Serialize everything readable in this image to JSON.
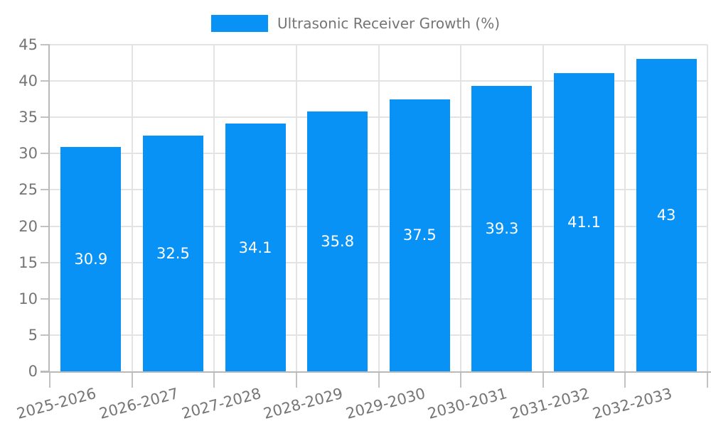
{
  "chart_data": {
    "type": "bar",
    "title": "",
    "legend": {
      "label": "Ultrasonic Receiver Growth (%)",
      "position": "top-center"
    },
    "categories": [
      "2025-2026",
      "2026-2027",
      "2027-2028",
      "2028-2029",
      "2029-2030",
      "2030-2031",
      "2031-2032",
      "2032-2033"
    ],
    "series": [
      {
        "name": "Ultrasonic Receiver Growth (%)",
        "values": [
          30.9,
          32.5,
          34.1,
          35.8,
          37.5,
          39.3,
          41.1,
          43
        ]
      }
    ],
    "value_labels": [
      "30.9",
      "32.5",
      "34.1",
      "35.8",
      "37.5",
      "39.3",
      "41.1",
      "43"
    ],
    "value_label_position": "center-inside",
    "xlabel": "",
    "ylabel": "",
    "ylim": [
      0,
      45
    ],
    "yticks": [
      0,
      5,
      10,
      15,
      20,
      25,
      30,
      35,
      40,
      45
    ],
    "x_label_rotation_deg": -15,
    "grid": true,
    "colors": {
      "bar": "#0992f6",
      "value_label": "#ffffff",
      "axis_text": "#757575",
      "spine": "#b9b9b9",
      "tick": "#c2c2c2",
      "grid": "#e3e3e3",
      "background": "#ffffff"
    }
  }
}
